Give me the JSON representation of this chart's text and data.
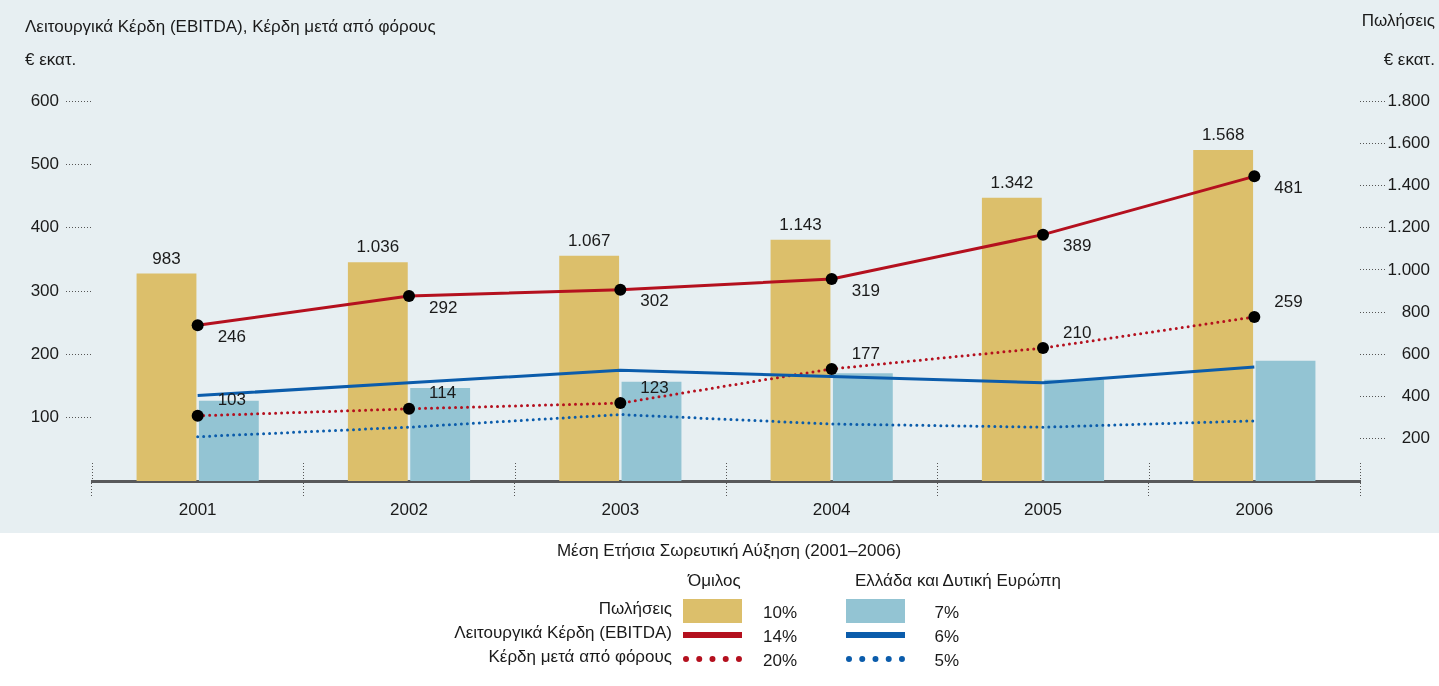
{
  "chart_data": {
    "type": "bar",
    "ylabel": "Λειτουργικά Κέρδη (EBITDA), Κέρδη μετά από φόρους\n€ εκατ.",
    "y2label": "Πωλήσεις\n€ εκατ.",
    "categories": [
      "2001",
      "2002",
      "2003",
      "2004",
      "2005",
      "2006"
    ],
    "series": [
      {
        "name": "Πωλήσεις",
        "axis": "y2",
        "color": "#dcbf6b",
        "values": [
          983,
          1036,
          1067,
          1143,
          1342,
          1568
        ],
        "value_labels": [
          "983",
          "1.036",
          "1.067",
          "1.143",
          "1.342",
          "1.568"
        ]
      },
      {
        "axis": "y2",
        "color": "#93c4d3",
        "values": [
          380,
          440,
          470,
          510,
          480,
          570
        ]
      },
      {
        "name": "Λειτουργικά Κέρδη (EBITDA)",
        "type": "line",
        "color": "#b4101e",
        "marker": "circle",
        "line_style": "solid",
        "values": [
          246,
          292,
          302,
          319,
          389,
          481
        ],
        "value_labels": [
          "246",
          "292",
          "302",
          "319",
          "389",
          "481"
        ]
      },
      {
        "type": "line",
        "color": "#0b5cab",
        "line_style": "solid",
        "values": [
          135,
          155,
          175,
          165,
          155,
          180
        ]
      },
      {
        "name": "Κέρδη μετά από φόρους",
        "type": "line",
        "color": "#b4101e",
        "marker": "circle",
        "line_style": "dotted",
        "values": [
          103,
          114,
          123,
          177,
          210,
          259
        ],
        "value_labels": [
          "103",
          "114",
          "123",
          "177",
          "210",
          "259"
        ]
      },
      {
        "type": "line",
        "color": "#0b5cab",
        "line_style": "dotted",
        "values": [
          70,
          85,
          105,
          90,
          85,
          95
        ]
      }
    ],
    "ylim": [
      0,
      600
    ],
    "yticks": [
      100,
      200,
      300,
      400,
      500,
      600
    ],
    "y2lim": [
      0,
      1800
    ],
    "y2ticks": [
      200,
      400,
      600,
      800,
      {
        "value": 1000,
        "label": "1.000"
      },
      {
        "value": 1200,
        "label": "1.200"
      },
      {
        "value": 1400,
        "label": "1.400"
      },
      {
        "value": 1600,
        "label": "1.600"
      },
      {
        "value": 1800,
        "label": "1.800"
      }
    ],
    "legend": "bottom",
    "legend_title": "Μέση Ετήσια Σωρευτική Αύξηση (2001–2006)",
    "annotations": [
      "Όμιλος",
      "Ελλάδα και Δυτική Ευρώπη",
      "10%",
      "7%",
      "14%",
      "6%",
      "20%",
      "5%"
    ]
  }
}
